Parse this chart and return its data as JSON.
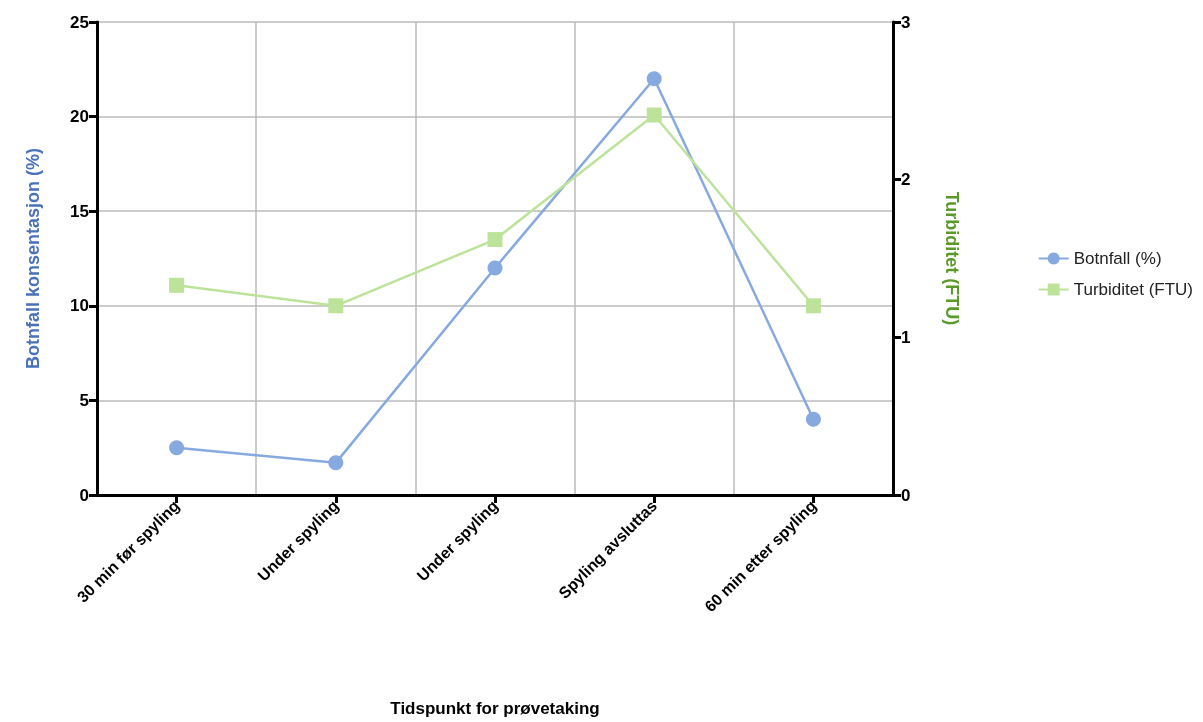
{
  "chart_data": {
    "type": "line",
    "xlabel": "Tidspunkt for prøvetaking",
    "ylabel": "Botnfall konsentasjon (%)",
    "y2label": "Turbiditet (FTU)",
    "categories": [
      "30 min før spyling",
      "Under spyling",
      "Under spyling",
      "Spyling avsluttas",
      "60 min etter spyling"
    ],
    "series": [
      {
        "name": "Botnfall (%)",
        "color": "#86a9e0",
        "values": [
          2.5,
          1.7,
          12,
          22,
          4
        ],
        "marker": "circle"
      },
      {
        "name": "Turbiditet (FTU)",
        "color": "#bde39a",
        "values": [
          1.33,
          1.2,
          1.62,
          2.41,
          1.2
        ],
        "marker": "square",
        "axis": "y2"
      }
    ],
    "ylim": [
      0,
      25
    ],
    "yticks": [
      0,
      5,
      10,
      15,
      20,
      25
    ],
    "y2lim": [
      0,
      3
    ],
    "y2ticks": [
      0,
      1,
      2,
      3
    ],
    "grid": true,
    "legend": "right"
  }
}
